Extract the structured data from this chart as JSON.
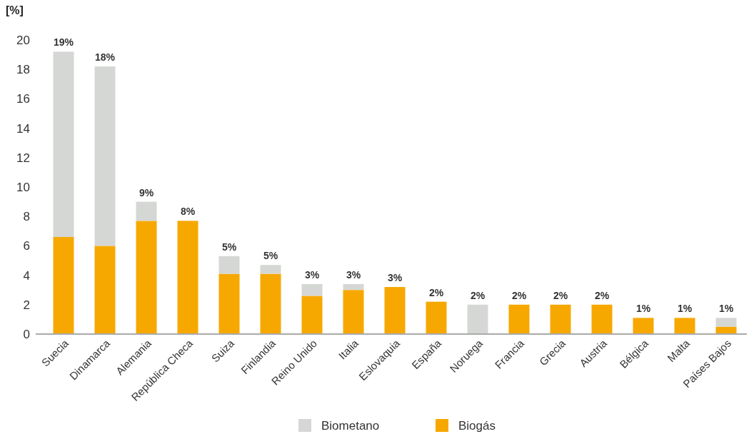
{
  "chart_data": {
    "type": "bar",
    "ylabel": "[%]",
    "stacked": true,
    "categories": [
      "Suecia",
      "Dinamarca",
      "Alemania",
      "República Checa",
      "Suiza",
      "Finlandia",
      "Reino Unido",
      "Italia",
      "Eslovaquia",
      "España",
      "Noruega",
      "Francia",
      "Grecia",
      "Austria",
      "Bélgica",
      "Malta",
      "Países Bajos"
    ],
    "series": [
      {
        "name": "Biogás",
        "color": "#f7a800",
        "values": [
          6.6,
          6.0,
          7.7,
          7.7,
          4.1,
          4.1,
          2.6,
          3.0,
          3.2,
          2.2,
          0,
          2.0,
          2.0,
          2.0,
          1.1,
          1.1,
          0.5
        ]
      },
      {
        "name": "Biometano",
        "color": "#d5d7d5",
        "values": [
          12.6,
          12.2,
          1.3,
          0,
          1.2,
          0.6,
          0.8,
          0.4,
          0,
          0,
          2.0,
          0,
          0,
          0,
          0,
          0,
          0.6
        ]
      }
    ],
    "totals": [
      "19%",
      "18%",
      "9%",
      "8%",
      "5%",
      "5%",
      "3%",
      "3%",
      "3%",
      "2%",
      "2%",
      "2%",
      "2%",
      "2%",
      "1%",
      "1%",
      "1%"
    ],
    "ylim": [
      0,
      20
    ],
    "yticks": [
      0,
      2,
      4,
      6,
      8,
      10,
      12,
      14,
      16,
      18,
      20
    ],
    "grid": false,
    "legend": "bottom"
  }
}
